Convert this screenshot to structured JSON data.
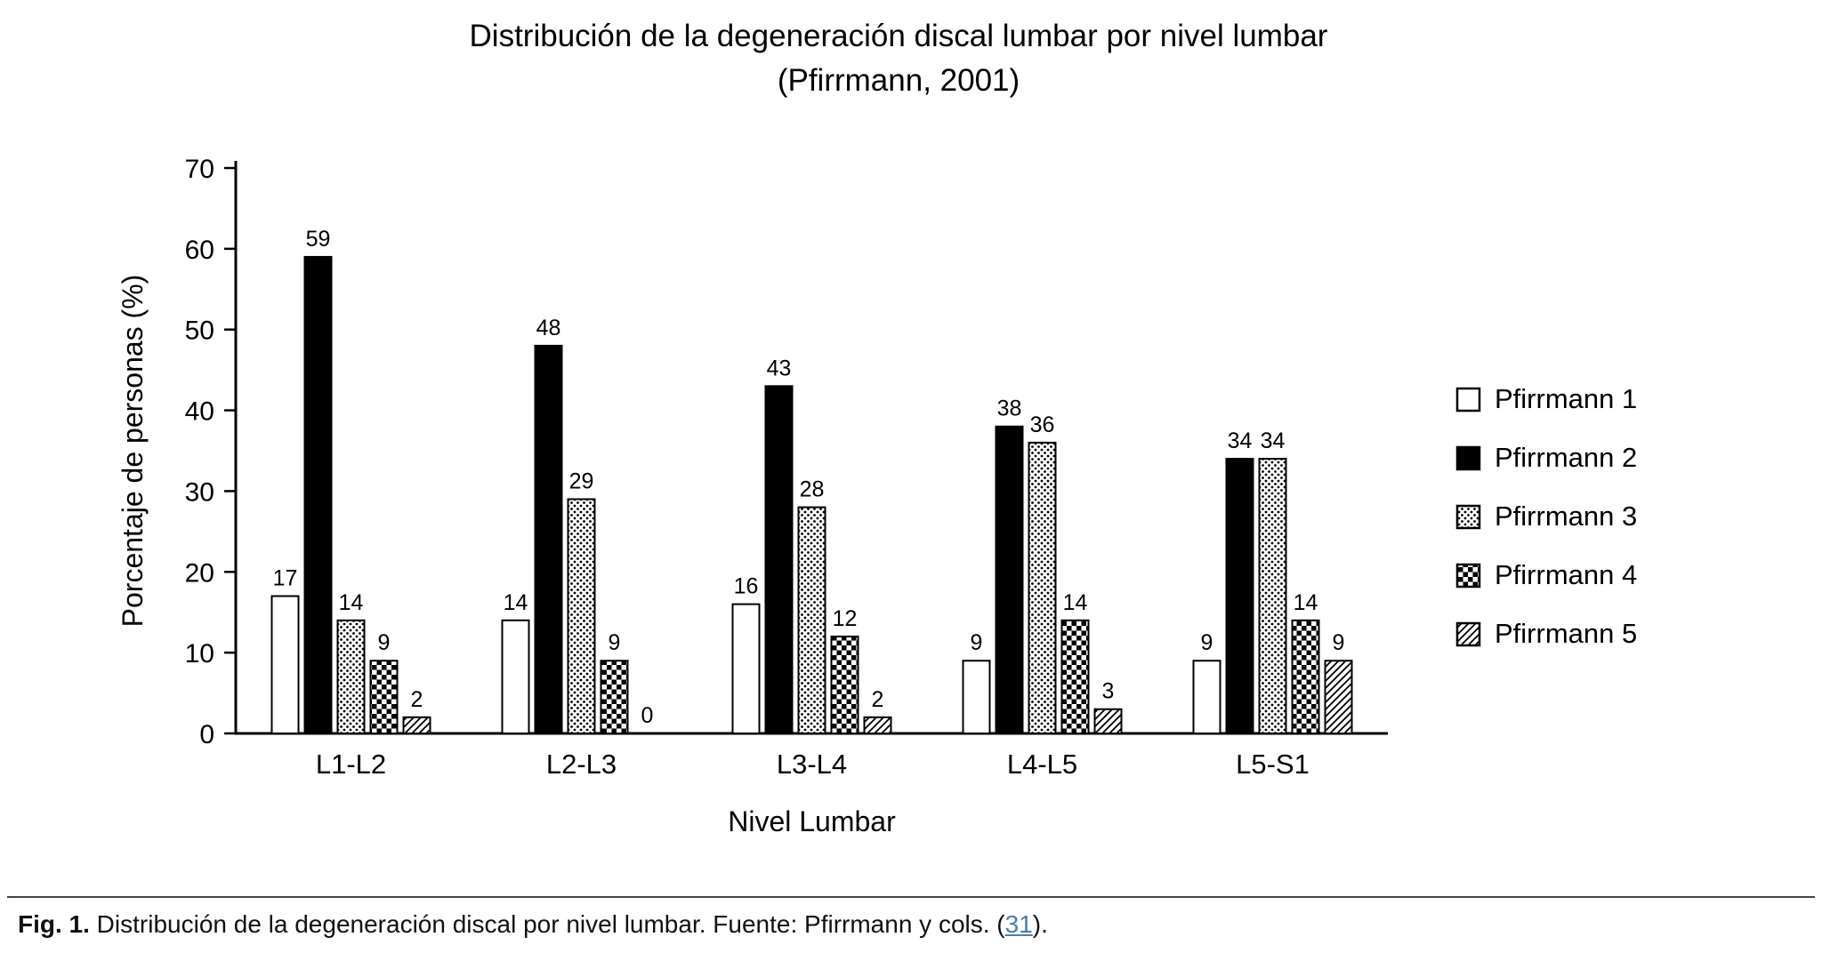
{
  "page": {
    "background": "#ffffff"
  },
  "chart_data": {
    "type": "bar",
    "title": "Distribución de la degeneración discal lumbar por nivel lumbar",
    "subtitle": "(Pfirrmann, 2001)",
    "xlabel": "Nivel Lumbar",
    "ylabel": "Porcentaje de personas (%)",
    "ylim": [
      0,
      70
    ],
    "ytick_step": 10,
    "grid": false,
    "legend_position": "right",
    "bar_outline_color": "#000000",
    "categories": [
      "L1-L2",
      "L2-L3",
      "L3-L4",
      "L4-L5",
      "L5-S1"
    ],
    "series": [
      {
        "name": "Pfirrmann 1",
        "pattern": "white",
        "values": [
          17,
          14,
          16,
          9,
          9
        ]
      },
      {
        "name": "Pfirrmann 2",
        "pattern": "solid",
        "values": [
          59,
          48,
          43,
          38,
          34
        ]
      },
      {
        "name": "Pfirrmann 3",
        "pattern": "dots",
        "values": [
          14,
          29,
          28,
          36,
          34
        ]
      },
      {
        "name": "Pfirrmann 4",
        "pattern": "checker",
        "values": [
          9,
          9,
          12,
          14,
          14
        ]
      },
      {
        "name": "Pfirrmann 5",
        "pattern": "hatch",
        "values": [
          2,
          0,
          2,
          3,
          9
        ]
      }
    ],
    "value_labels": true
  },
  "caption": {
    "fig_label": "Fig. 1.",
    "text_before_link": " Distribución de la degeneración discal por nivel lumbar. Fuente: Pfirrmann y cols. (",
    "link_text": "31",
    "text_after_link": ").",
    "link_color": "#4d7da8"
  }
}
